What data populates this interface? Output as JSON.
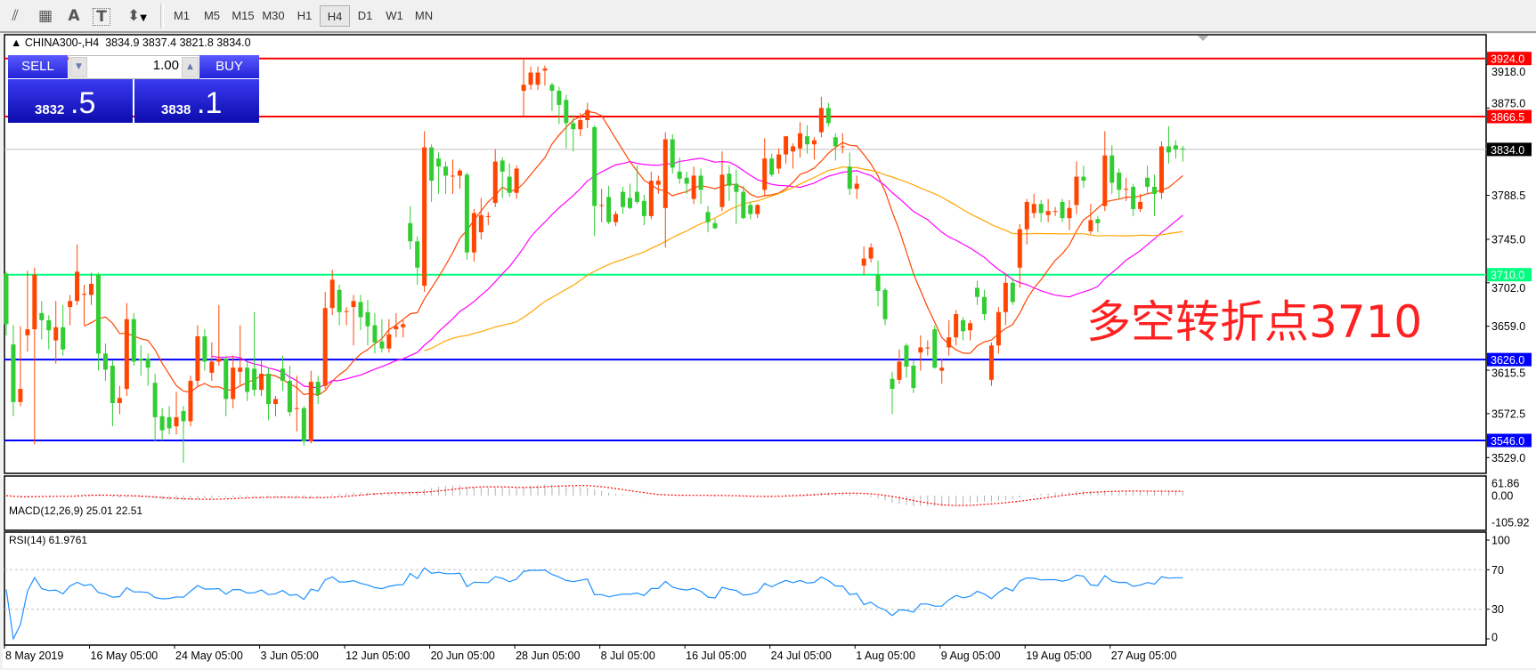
{
  "toolbar": {
    "icons": [
      "fibonacci-expansion-icon",
      "fibonacci-fan-icon",
      "text-icon",
      "text-label-icon",
      "arrows-icon"
    ],
    "icon_glyphs": [
      "⫽",
      "▦",
      "A",
      "T",
      "⬍"
    ],
    "timeframes": [
      "M1",
      "M5",
      "M15",
      "M30",
      "H1",
      "H4",
      "D1",
      "W1",
      "MN"
    ],
    "active_timeframe": "H4"
  },
  "header": {
    "symbol": "CHINA300-,H4",
    "ohlc": "3834.9 3837.4 3821.8 3834.0"
  },
  "trade_panel": {
    "sell_label": "SELL",
    "buy_label": "BUY",
    "lot": "1.00",
    "sell_price_main": "3832",
    "sell_price_big": ".5",
    "buy_price_main": "3838",
    "buy_price_big": ".1"
  },
  "annotation": {
    "text": "多空转折点3710",
    "color": "#ff2020"
  },
  "chart_data": {
    "type": "candlestick",
    "symbol": "CHINA300-",
    "timeframe": "H4",
    "colors": {
      "up": "#ff4500",
      "down": "#32cd32",
      "ma_fast": "#ff4500",
      "ma_mid": "#ff00ff",
      "ma_slow": "#ffa500",
      "rsi": "#1e90ff",
      "macd_signal": "#ff0000",
      "macd_hist": "#b4b4b4"
    },
    "ylim": [
      3513,
      3950
    ],
    "y_ticks": [
      "3918.0",
      "3875.0",
      "3788.5",
      "3745.0",
      "3702.0",
      "3659.0",
      "3615.5",
      "3572.5",
      "3529.0"
    ],
    "y_tick_values": [
      3918.0,
      3875.0,
      3788.5,
      3745.0,
      3702.0,
      3659.0,
      3615.5,
      3572.5,
      3529.0
    ],
    "x_ticks": [
      {
        "label": "8 May 2019",
        "bar": 0
      },
      {
        "label": "16 May 05:00",
        "bar": 12
      },
      {
        "label": "24 May 05:00",
        "bar": 24
      },
      {
        "label": "3 Jun 05:00",
        "bar": 36
      },
      {
        "label": "12 Jun 05:00",
        "bar": 48
      },
      {
        "label": "20 Jun 05:00",
        "bar": 60
      },
      {
        "label": "28 Jun 05:00",
        "bar": 72
      },
      {
        "label": "8 Jul 05:00",
        "bar": 84
      },
      {
        "label": "16 Jul 05:00",
        "bar": 96
      },
      {
        "label": "24 Jul 05:00",
        "bar": 108
      },
      {
        "label": "1 Aug 05:00",
        "bar": 120
      },
      {
        "label": "9 Aug 05:00",
        "bar": 132
      },
      {
        "label": "19 Aug 05:00",
        "bar": 144
      },
      {
        "label": "27 Aug 05:00",
        "bar": 156
      }
    ],
    "levels": [
      {
        "label": "3924.0",
        "value": 3924.0,
        "color": "#ff0000"
      },
      {
        "label": "3866.5",
        "value": 3866.5,
        "color": "#ff0000"
      },
      {
        "label": "3834.0",
        "value": 3834.0,
        "color": "#000000",
        "line": "#c0c0c0"
      },
      {
        "label": "3710.0",
        "value": 3710.0,
        "color": "#00ff7f"
      },
      {
        "label": "3626.0",
        "value": 3626.0,
        "color": "#0000ff"
      },
      {
        "label": "3546.0",
        "value": 3546.0,
        "color": "#0000ff"
      }
    ],
    "candles_ohlc": [
      [
        3711,
        3713,
        3650,
        3661
      ],
      [
        3641,
        3660,
        3570,
        3584
      ],
      [
        3584,
        3659,
        3580,
        3597
      ],
      [
        3650,
        3714,
        3634,
        3656
      ],
      [
        3656,
        3717,
        3542,
        3710
      ],
      [
        3672,
        3684,
        3646,
        3665
      ],
      [
        3665,
        3670,
        3636,
        3655
      ],
      [
        3645,
        3684,
        3622,
        3658
      ],
      [
        3658,
        3680,
        3630,
        3636
      ],
      [
        3678,
        3690,
        3660,
        3684
      ],
      [
        3684,
        3740,
        3680,
        3713
      ],
      [
        3690,
        3700,
        3660,
        3691
      ],
      [
        3690,
        3712,
        3680,
        3701
      ],
      [
        3710,
        3712,
        3615,
        3632
      ],
      [
        3632,
        3642,
        3605,
        3616
      ],
      [
        3620,
        3625,
        3560,
        3583
      ],
      [
        3583,
        3600,
        3572,
        3588
      ],
      [
        3597,
        3682,
        3590,
        3666
      ],
      [
        3666,
        3672,
        3620,
        3624
      ],
      [
        3627,
        3640,
        3610,
        3625
      ],
      [
        3627,
        3632,
        3600,
        3618
      ],
      [
        3603,
        3612,
        3545,
        3569
      ],
      [
        3570,
        3578,
        3546,
        3556
      ],
      [
        3569,
        3580,
        3552,
        3558
      ],
      [
        3560,
        3594,
        3552,
        3569
      ],
      [
        3575,
        3580,
        3524,
        3565
      ],
      [
        3565,
        3610,
        3560,
        3605
      ],
      [
        3605,
        3660,
        3600,
        3649
      ],
      [
        3649,
        3656,
        3615,
        3624
      ],
      [
        3613,
        3643,
        3605,
        3624
      ],
      [
        3624,
        3680,
        3620,
        3627
      ],
      [
        3627,
        3630,
        3570,
        3587
      ],
      [
        3587,
        3630,
        3578,
        3618
      ],
      [
        3614,
        3660,
        3600,
        3618
      ],
      [
        3618,
        3625,
        3585,
        3594
      ],
      [
        3617,
        3673,
        3590,
        3596
      ],
      [
        3596,
        3625,
        3590,
        3612
      ],
      [
        3612,
        3618,
        3566,
        3582
      ],
      [
        3582,
        3590,
        3570,
        3587
      ],
      [
        3617,
        3630,
        3595,
        3605
      ],
      [
        3605,
        3620,
        3570,
        3574
      ],
      [
        3578,
        3610,
        3555,
        3578
      ],
      [
        3578,
        3580,
        3541,
        3545
      ],
      [
        3545,
        3615,
        3543,
        3604
      ],
      [
        3604,
        3610,
        3582,
        3591
      ],
      [
        3600,
        3693,
        3597,
        3677
      ],
      [
        3677,
        3715,
        3670,
        3705
      ],
      [
        3695,
        3700,
        3660,
        3673
      ],
      [
        3674,
        3678,
        3660,
        3674
      ],
      [
        3678,
        3690,
        3640,
        3684
      ],
      [
        3683,
        3690,
        3655,
        3668
      ],
      [
        3673,
        3685,
        3640,
        3659
      ],
      [
        3660,
        3672,
        3632,
        3643
      ],
      [
        3644,
        3666,
        3633,
        3637
      ],
      [
        3637,
        3666,
        3633,
        3651
      ],
      [
        3656,
        3672,
        3648,
        3659
      ],
      [
        3658,
        3665,
        3648,
        3661
      ],
      [
        3761,
        3778,
        3735,
        3743
      ],
      [
        3743,
        3748,
        3700,
        3717
      ],
      [
        3699,
        3852,
        3693,
        3836
      ],
      [
        3836,
        3839,
        3782,
        3803
      ],
      [
        3825,
        3831,
        3790,
        3817
      ],
      [
        3817,
        3822,
        3790,
        3808
      ],
      [
        3808,
        3824,
        3790,
        3808
      ],
      [
        3808,
        3815,
        3795,
        3813
      ],
      [
        3809,
        3811,
        3725,
        3732
      ],
      [
        3732,
        3775,
        3723,
        3771
      ],
      [
        3752,
        3786,
        3745,
        3769
      ],
      [
        3768,
        3772,
        3759,
        3768
      ],
      [
        3781,
        3834,
        3777,
        3822
      ],
      [
        3823,
        3826,
        3786,
        3812
      ],
      [
        3807,
        3820,
        3787,
        3791
      ],
      [
        3791,
        3818,
        3785,
        3815
      ],
      [
        3892,
        3924,
        3866,
        3898
      ],
      [
        3898,
        3916,
        3893,
        3910
      ],
      [
        3898,
        3916,
        3893,
        3910
      ],
      [
        3912,
        3917,
        3897,
        3914
      ],
      [
        3898,
        3900,
        3872,
        3892
      ],
      [
        3892,
        3896,
        3859,
        3878
      ],
      [
        3883,
        3888,
        3835,
        3860
      ],
      [
        3860,
        3868,
        3832,
        3854
      ],
      [
        3854,
        3870,
        3847,
        3863
      ],
      [
        3863,
        3880,
        3855,
        3873
      ],
      [
        3856,
        3858,
        3748,
        3778
      ],
      [
        3779,
        3795,
        3762,
        3779
      ],
      [
        3787,
        3798,
        3760,
        3762
      ],
      [
        3762,
        3773,
        3758,
        3770
      ],
      [
        3792,
        3797,
        3770,
        3777
      ],
      [
        3786,
        3800,
        3775,
        3776
      ],
      [
        3792,
        3818,
        3780,
        3782
      ],
      [
        3783,
        3789,
        3759,
        3768
      ],
      [
        3768,
        3812,
        3765,
        3803
      ],
      [
        3799,
        3808,
        3790,
        3803
      ],
      [
        3776,
        3851,
        3737,
        3844
      ],
      [
        3844,
        3849,
        3810,
        3816
      ],
      [
        3812,
        3826,
        3800,
        3805
      ],
      [
        3806,
        3812,
        3790,
        3800
      ],
      [
        3785,
        3817,
        3780,
        3808
      ],
      [
        3808,
        3815,
        3780,
        3794
      ],
      [
        3772,
        3778,
        3752,
        3762
      ],
      [
        3761,
        3765,
        3755,
        3756
      ],
      [
        3777,
        3832,
        3773,
        3809
      ],
      [
        3810,
        3818,
        3783,
        3798
      ],
      [
        3800,
        3814,
        3760,
        3792
      ],
      [
        3792,
        3798,
        3765,
        3766
      ],
      [
        3779,
        3782,
        3765,
        3770
      ],
      [
        3770,
        3780,
        3766,
        3779
      ],
      [
        3794,
        3845,
        3788,
        3825
      ],
      [
        3825,
        3830,
        3807,
        3809
      ],
      [
        3815,
        3835,
        3810,
        3829
      ],
      [
        3829,
        3847,
        3820,
        3847
      ],
      [
        3832,
        3840,
        3815,
        3837
      ],
      [
        3835,
        3861,
        3826,
        3850
      ],
      [
        3847,
        3858,
        3830,
        3839
      ],
      [
        3839,
        3846,
        3824,
        3843
      ],
      [
        3851,
        3886,
        3846,
        3875
      ],
      [
        3875,
        3880,
        3857,
        3860
      ],
      [
        3846,
        3850,
        3823,
        3837
      ],
      [
        3837,
        3850,
        3830,
        3837
      ],
      [
        3817,
        3831,
        3789,
        3795
      ],
      [
        3795,
        3808,
        3785,
        3800
      ],
      [
        3719,
        3738,
        3710,
        3726
      ],
      [
        3726,
        3741,
        3722,
        3737
      ],
      [
        3710,
        3724,
        3679,
        3694
      ],
      [
        3695,
        3697,
        3660,
        3666
      ],
      [
        3607,
        3614,
        3572,
        3597
      ],
      [
        3606,
        3636,
        3602,
        3624
      ],
      [
        3640,
        3642,
        3608,
        3619
      ],
      [
        3620,
        3625,
        3593,
        3598
      ],
      [
        3633,
        3650,
        3615,
        3638
      ],
      [
        3638,
        3645,
        3630,
        3638
      ],
      [
        3656,
        3660,
        3617,
        3618
      ],
      [
        3615,
        3627,
        3602,
        3618
      ],
      [
        3638,
        3665,
        3630,
        3648
      ],
      [
        3648,
        3675,
        3640,
        3671
      ],
      [
        3665,
        3668,
        3645,
        3654
      ],
      [
        3655,
        3665,
        3645,
        3662
      ],
      [
        3697,
        3704,
        3680,
        3688
      ],
      [
        3688,
        3695,
        3665,
        3671
      ],
      [
        3606,
        3643,
        3600,
        3640
      ],
      [
        3640,
        3678,
        3632,
        3673
      ],
      [
        3673,
        3711,
        3660,
        3702
      ],
      [
        3702,
        3707,
        3680,
        3683
      ],
      [
        3717,
        3760,
        3697,
        3755
      ],
      [
        3755,
        3785,
        3740,
        3782
      ],
      [
        3771,
        3790,
        3766,
        3780
      ],
      [
        3780,
        3784,
        3762,
        3771
      ],
      [
        3769,
        3785,
        3762,
        3773
      ],
      [
        3773,
        3777,
        3768,
        3773
      ],
      [
        3782,
        3785,
        3762,
        3766
      ],
      [
        3766,
        3784,
        3754,
        3776
      ],
      [
        3779,
        3822,
        3770,
        3807
      ],
      [
        3807,
        3818,
        3796,
        3803
      ],
      [
        3753,
        3780,
        3750,
        3764
      ],
      [
        3765,
        3768,
        3752,
        3761
      ],
      [
        3778,
        3852,
        3773,
        3828
      ],
      [
        3828,
        3838,
        3790,
        3801
      ],
      [
        3811,
        3815,
        3785,
        3794
      ],
      [
        3795,
        3806,
        3783,
        3795
      ],
      [
        3797,
        3800,
        3768,
        3775
      ],
      [
        3775,
        3790,
        3772,
        3782
      ],
      [
        3806,
        3818,
        3790,
        3797
      ],
      [
        3797,
        3809,
        3768,
        3790
      ],
      [
        3791,
        3842,
        3785,
        3837
      ],
      [
        3837,
        3857,
        3820,
        3831
      ],
      [
        3838,
        3843,
        3825,
        3834
      ],
      [
        3834.9,
        3837.4,
        3821.8,
        3834.0
      ]
    ],
    "macd": {
      "label": "MACD(12,26,9) 25.01 22.51",
      "y_ticks": [
        "61.86",
        "0.00",
        "-105.92"
      ],
      "y_tick_values": [
        61.86,
        0,
        -105.92
      ]
    },
    "rsi": {
      "label": "RSI(14) 61.9761",
      "y_ticks": [
        "100",
        "70",
        "30",
        "0"
      ],
      "y_tick_values": [
        100,
        70,
        30,
        0
      ],
      "levels": [
        70,
        30
      ]
    }
  }
}
